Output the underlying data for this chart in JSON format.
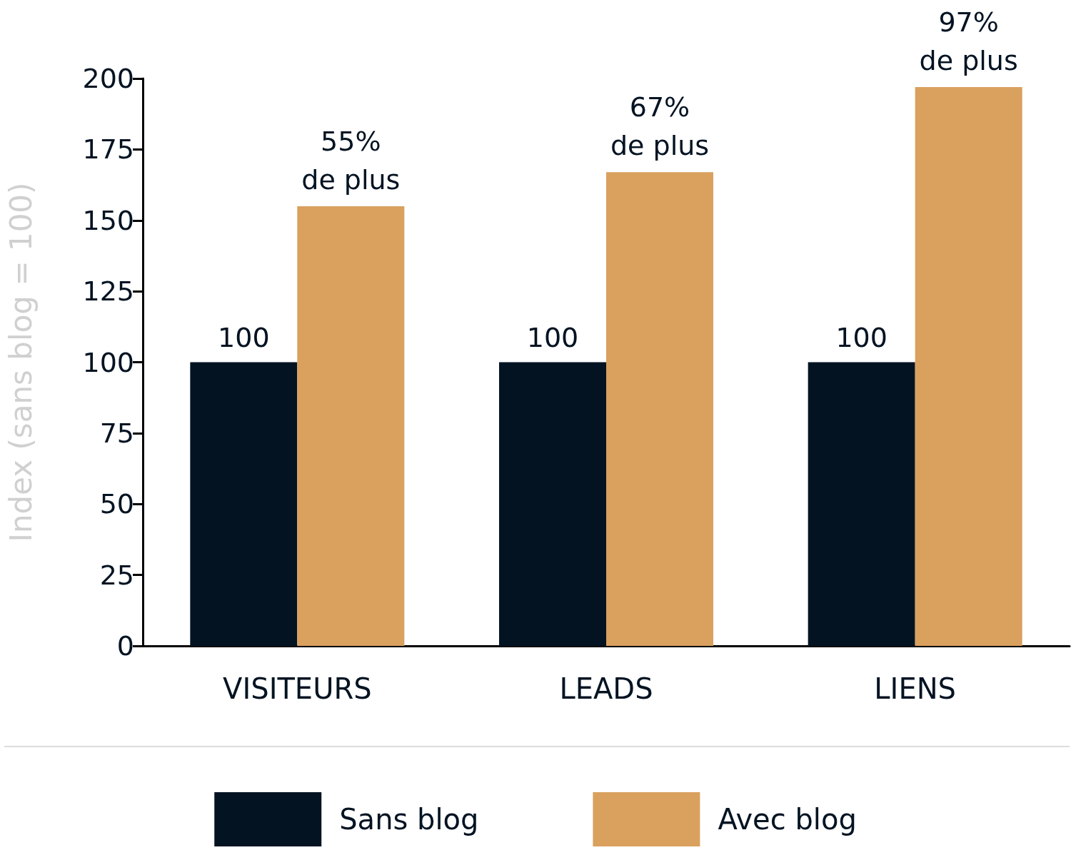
{
  "chart_data": {
    "type": "bar",
    "ylabel": "Index (sans blog = 100)",
    "categories": [
      "VISITEURS",
      "LEADS",
      "LIENS"
    ],
    "series": [
      {
        "name": "Sans blog",
        "color": "#031322",
        "values": [
          100,
          100,
          100
        ],
        "value_labels": [
          "100",
          "100",
          "100"
        ]
      },
      {
        "name": "Avec blog",
        "color": "#d9a05e",
        "values": [
          155,
          167,
          197
        ]
      }
    ],
    "annotations": [
      {
        "text": "55%\nde plus",
        "x": "VISITEURS",
        "y": 155
      },
      {
        "text": "67%\nde plus",
        "x": "LEADS",
        "y": 167
      },
      {
        "text": "97%\nde plus",
        "x": "LIENS",
        "y": 197
      }
    ],
    "ylim": [
      0,
      200
    ],
    "yticks": [
      0,
      25,
      50,
      75,
      100,
      125,
      150,
      175,
      200
    ],
    "grid": false,
    "legend": "bottom"
  }
}
